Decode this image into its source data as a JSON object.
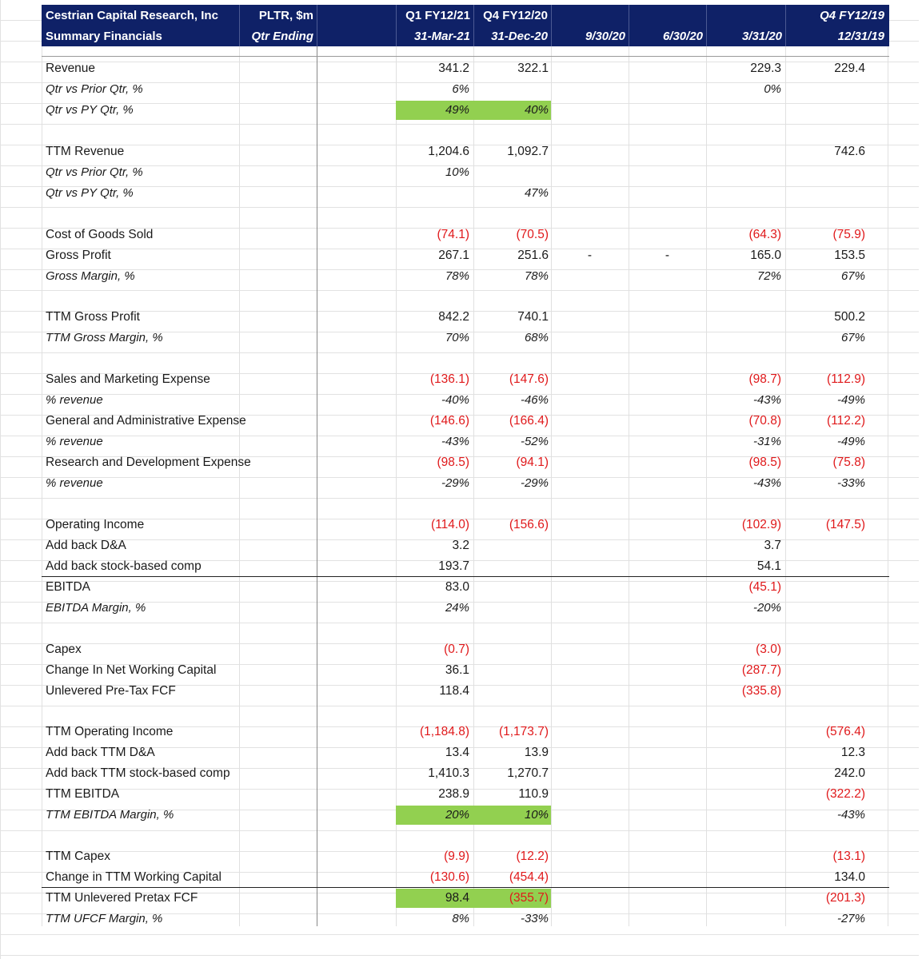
{
  "header": {
    "company": "Cestrian Capital Research, Inc",
    "ticker": "PLTR, $m",
    "subtitle": "Summary Financials",
    "qtr_ending": "Qtr Ending",
    "col1_top": "Q1 FY12/21",
    "col1_bottom": "31-Mar-21",
    "col2_top": "Q4 FY12/20",
    "col2_bottom": "31-Dec-20",
    "col3_bottom": "9/30/20",
    "col4_bottom": "6/30/20",
    "col5_bottom": "3/31/20",
    "col6_top": "Q4 FY12/19",
    "col6_bottom": "12/31/19"
  },
  "rows": [
    {
      "label": "Revenue",
      "v": [
        "341.2",
        "322.1",
        "",
        "",
        "229.3",
        "229.4"
      ]
    },
    {
      "label": "Qtr vs Prior Qtr, %",
      "italic": true,
      "v": [
        "6%",
        "",
        "",
        "",
        "0%",
        ""
      ]
    },
    {
      "label": "Qtr vs PY Qtr, %",
      "italic": true,
      "v": [
        "49%",
        "40%",
        "",
        "",
        "",
        ""
      ],
      "green": [
        0,
        1
      ]
    },
    {
      "label": "",
      "v": [
        "",
        "",
        "",
        "",
        "",
        ""
      ]
    },
    {
      "label": "TTM Revenue",
      "v": [
        "1,204.6",
        "1,092.7",
        "",
        "",
        "",
        "742.6"
      ]
    },
    {
      "label": "Qtr vs Prior Qtr, %",
      "italic": true,
      "v": [
        "10%",
        "",
        "",
        "",
        "",
        ""
      ]
    },
    {
      "label": "Qtr vs PY Qtr, %",
      "italic": true,
      "v": [
        "",
        "47%",
        "",
        "",
        "",
        ""
      ]
    },
    {
      "label": "",
      "v": [
        "",
        "",
        "",
        "",
        "",
        ""
      ]
    },
    {
      "label": "Cost of Goods Sold",
      "v": [
        "(74.1)",
        "(70.5)",
        "",
        "",
        "(64.3)",
        "(75.9)"
      ]
    },
    {
      "label": "Gross Profit",
      "v": [
        "267.1",
        "251.6",
        "-",
        "-",
        "165.0",
        "153.5"
      ]
    },
    {
      "label": "Gross Margin, %",
      "italic": true,
      "v": [
        "78%",
        "78%",
        "",
        "",
        "72%",
        "67%"
      ]
    },
    {
      "label": "",
      "v": [
        "",
        "",
        "",
        "",
        "",
        ""
      ]
    },
    {
      "label": "TTM Gross Profit",
      "v": [
        "842.2",
        "740.1",
        "",
        "",
        "",
        "500.2"
      ]
    },
    {
      "label": "TTM Gross Margin, %",
      "italic": true,
      "v": [
        "70%",
        "68%",
        "",
        "",
        "",
        "67%"
      ]
    },
    {
      "label": "",
      "v": [
        "",
        "",
        "",
        "",
        "",
        ""
      ]
    },
    {
      "label": "Sales and Marketing Expense",
      "v": [
        "(136.1)",
        "(147.6)",
        "",
        "",
        "(98.7)",
        "(112.9)"
      ]
    },
    {
      "label": "% revenue",
      "italic": true,
      "v": [
        "-40%",
        "-46%",
        "",
        "",
        "-43%",
        "-49%"
      ]
    },
    {
      "label": "General and Administrative Expense",
      "v": [
        "(146.6)",
        "(166.4)",
        "",
        "",
        "(70.8)",
        "(112.2)"
      ]
    },
    {
      "label": "% revenue",
      "italic": true,
      "v": [
        "-43%",
        "-52%",
        "",
        "",
        "-31%",
        "-49%"
      ]
    },
    {
      "label": "Research and Development Expense",
      "v": [
        "(98.5)",
        "(94.1)",
        "",
        "",
        "(98.5)",
        "(75.8)"
      ]
    },
    {
      "label": "% revenue",
      "italic": true,
      "v": [
        "-29%",
        "-29%",
        "",
        "",
        "-43%",
        "-33%"
      ]
    },
    {
      "label": "",
      "v": [
        "",
        "",
        "",
        "",
        "",
        ""
      ]
    },
    {
      "label": "Operating Income",
      "v": [
        "(114.0)",
        "(156.6)",
        "",
        "",
        "(102.9)",
        "(147.5)"
      ]
    },
    {
      "label": "Add back D&A",
      "v": [
        "3.2",
        "",
        "",
        "",
        "3.7",
        ""
      ]
    },
    {
      "label": "Add back stock-based comp",
      "v": [
        "193.7",
        "",
        "",
        "",
        "54.1",
        ""
      ],
      "rule": true
    },
    {
      "label": "EBITDA",
      "v": [
        "83.0",
        "",
        "",
        "",
        "(45.1)",
        ""
      ]
    },
    {
      "label": "EBITDA Margin, %",
      "italic": true,
      "v": [
        "24%",
        "",
        "",
        "",
        "-20%",
        ""
      ]
    },
    {
      "label": "",
      "v": [
        "",
        "",
        "",
        "",
        "",
        ""
      ]
    },
    {
      "label": "Capex",
      "v": [
        "(0.7)",
        "",
        "",
        "",
        "(3.0)",
        ""
      ]
    },
    {
      "label": "Change In Net Working Capital",
      "v": [
        "36.1",
        "",
        "",
        "",
        "(287.7)",
        ""
      ]
    },
    {
      "label": "Unlevered Pre-Tax FCF",
      "v": [
        "118.4",
        "",
        "",
        "",
        "(335.8)",
        ""
      ]
    },
    {
      "label": "",
      "v": [
        "",
        "",
        "",
        "",
        "",
        ""
      ]
    },
    {
      "label": "TTM Operating Income",
      "v": [
        "(1,184.8)",
        "(1,173.7)",
        "",
        "",
        "",
        "(576.4)"
      ]
    },
    {
      "label": "Add back TTM D&A",
      "v": [
        "13.4",
        "13.9",
        "",
        "",
        "",
        "12.3"
      ]
    },
    {
      "label": "Add back TTM stock-based comp",
      "v": [
        "1,410.3",
        "1,270.7",
        "",
        "",
        "",
        "242.0"
      ]
    },
    {
      "label": "TTM EBITDA",
      "v": [
        "238.9",
        "110.9",
        "",
        "",
        "",
        "(322.2)"
      ]
    },
    {
      "label": "TTM EBITDA Margin, %",
      "italic": true,
      "v": [
        "20%",
        "10%",
        "",
        "",
        "",
        "-43%"
      ],
      "green": [
        0,
        1
      ]
    },
    {
      "label": "",
      "v": [
        "",
        "",
        "",
        "",
        "",
        ""
      ]
    },
    {
      "label": "TTM Capex",
      "v": [
        "(9.9)",
        "(12.2)",
        "",
        "",
        "",
        "(13.1)"
      ]
    },
    {
      "label": "Change in TTM Working Capital",
      "v": [
        "(130.6)",
        "(454.4)",
        "",
        "",
        "",
        "134.0"
      ],
      "rule": true
    },
    {
      "label": "TTM Unlevered Pretax FCF",
      "v": [
        "98.4",
        "(355.7)",
        "",
        "",
        "",
        "(201.3)"
      ],
      "green": [
        0,
        1
      ]
    },
    {
      "label": "TTM UFCF Margin, %",
      "italic": true,
      "v": [
        "8%",
        "-33%",
        "",
        "",
        "",
        "-27%"
      ]
    }
  ]
}
